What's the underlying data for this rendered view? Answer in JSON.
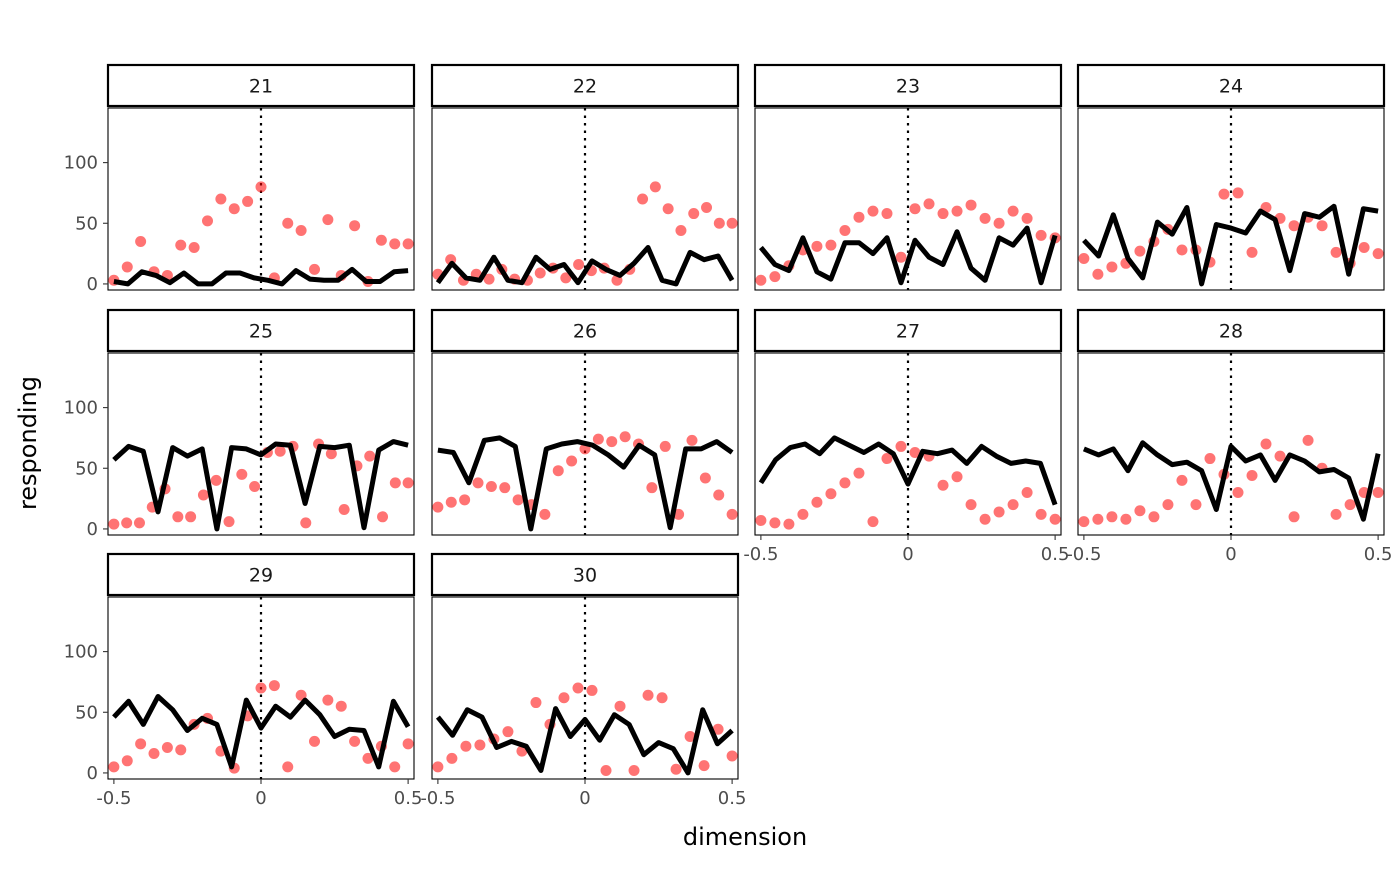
{
  "chart_data": {
    "type": "scatter",
    "xlabel": "dimension",
    "ylabel": "responding",
    "xlim": [
      -0.52,
      0.52
    ],
    "ylim": [
      -5,
      145
    ],
    "x_ticks": [
      -0.5,
      0,
      0.5
    ],
    "x_tick_labels": [
      "-0.5",
      "0",
      "0.5"
    ],
    "y_ticks": [
      0,
      50,
      100
    ],
    "y_tick_labels": [
      "0",
      "50",
      "100"
    ],
    "reference_x": 0,
    "grid": false,
    "point_color": "#ff0000",
    "line_color": "#000000",
    "x": [
      -0.5,
      -0.4655,
      -0.431,
      -0.3966,
      -0.3621,
      -0.3276,
      -0.2931,
      -0.2586,
      -0.2241,
      -0.1897,
      -0.1552,
      -0.1207,
      -0.0862,
      -0.0517,
      -0.0172,
      0.0172,
      0.0517,
      0.0862,
      0.1207,
      0.1552,
      0.1897,
      0.2241,
      0.2586,
      0.2931,
      0.3276,
      0.3621,
      0.3966,
      0.431,
      0.4655,
      0.5
    ],
    "panels": [
      {
        "label": "21",
        "line": [
          2,
          0,
          10,
          7,
          1,
          9,
          0,
          0,
          9,
          9,
          5,
          3,
          0,
          11,
          4,
          3,
          3,
          12,
          2,
          2,
          10,
          11
        ],
        "points": [
          3,
          14,
          35,
          10,
          7,
          32,
          30,
          52,
          70,
          62,
          68,
          80,
          5,
          50,
          44,
          12,
          53,
          7,
          48,
          2,
          36,
          33,
          33
        ]
      },
      {
        "label": "22",
        "line": [
          1,
          17,
          5,
          3,
          22,
          3,
          1,
          22,
          12,
          16,
          1,
          19,
          12,
          7,
          17,
          30,
          3,
          0,
          26,
          20,
          23,
          3
        ],
        "points": [
          8,
          20,
          3,
          8,
          4,
          12,
          4,
          3,
          9,
          13,
          5,
          16,
          11,
          13,
          3,
          12,
          70,
          80,
          62,
          44,
          58,
          63,
          50,
          50
        ]
      },
      {
        "label": "23",
        "line": [
          30,
          16,
          11,
          38,
          10,
          4,
          34,
          34,
          25,
          38,
          1,
          36,
          22,
          16,
          43,
          13,
          3,
          38,
          32,
          46,
          1,
          40
        ],
        "points": [
          3,
          6,
          15,
          28,
          31,
          32,
          44,
          55,
          60,
          58,
          22,
          62,
          66,
          58,
          60,
          65,
          54,
          50,
          60,
          54,
          40,
          38
        ]
      },
      {
        "label": "24",
        "line": [
          36,
          23,
          57,
          21,
          5,
          51,
          41,
          63,
          0,
          49,
          46,
          42,
          60,
          53,
          11,
          58,
          55,
          64,
          8,
          62,
          60
        ],
        "points": [
          21,
          8,
          14,
          17,
          27,
          35,
          45,
          28,
          28,
          18,
          74,
          75,
          26,
          63,
          54,
          48,
          55,
          48,
          26,
          17,
          30,
          25
        ]
      },
      {
        "label": "25",
        "line": [
          57,
          68,
          64,
          14,
          67,
          60,
          66,
          0,
          67,
          66,
          61,
          70,
          69,
          21,
          68,
          67,
          69,
          1,
          65,
          72,
          69
        ],
        "points": [
          4,
          5,
          5,
          18,
          33,
          10,
          10,
          28,
          40,
          6,
          45,
          35,
          63,
          64,
          68,
          5,
          70,
          62,
          16,
          52,
          60,
          10,
          38,
          38
        ]
      },
      {
        "label": "26",
        "line": [
          65,
          63,
          38,
          73,
          75,
          68,
          0,
          66,
          70,
          72,
          69,
          61,
          51,
          69,
          61,
          1,
          66,
          66,
          72,
          63
        ],
        "points": [
          18,
          22,
          24,
          38,
          35,
          34,
          24,
          20,
          12,
          48,
          56,
          66,
          74,
          72,
          76,
          70,
          34,
          68,
          12,
          73,
          42,
          28,
          12
        ]
      },
      {
        "label": "27",
        "line": [
          38,
          57,
          67,
          70,
          62,
          75,
          69,
          63,
          70,
          62,
          37,
          64,
          62,
          65,
          54,
          68,
          60,
          54,
          56,
          54,
          20
        ],
        "points": [
          7,
          5,
          4,
          12,
          22,
          29,
          38,
          46,
          6,
          58,
          68,
          63,
          60,
          36,
          43,
          20,
          8,
          14,
          20,
          30,
          12,
          8
        ]
      },
      {
        "label": "28",
        "line": [
          66,
          61,
          66,
          48,
          71,
          61,
          53,
          55,
          48,
          16,
          68,
          56,
          61,
          40,
          61,
          56,
          47,
          49,
          42,
          8,
          62
        ],
        "points": [
          6,
          8,
          10,
          8,
          15,
          10,
          20,
          40,
          20,
          58,
          45,
          30,
          44,
          70,
          60,
          10,
          73,
          50,
          12,
          20,
          30,
          30
        ]
      },
      {
        "label": "29",
        "line": [
          46,
          59,
          40,
          63,
          52,
          35,
          45,
          40,
          5,
          60,
          37,
          55,
          46,
          60,
          48,
          30,
          36,
          35,
          5,
          59,
          38
        ],
        "points": [
          5,
          10,
          24,
          16,
          21,
          19,
          40,
          45,
          18,
          4,
          47,
          70,
          72,
          5,
          64,
          26,
          60,
          55,
          26,
          12,
          22,
          5,
          24
        ]
      },
      {
        "label": "30",
        "line": [
          46,
          31,
          52,
          46,
          21,
          26,
          22,
          2,
          53,
          30,
          44,
          27,
          48,
          40,
          15,
          25,
          20,
          0,
          52,
          24,
          35
        ],
        "points": [
          5,
          12,
          22,
          23,
          28,
          34,
          18,
          58,
          40,
          62,
          70,
          68,
          2,
          55,
          2,
          64,
          62,
          3,
          30,
          6,
          36,
          14
        ]
      }
    ]
  }
}
